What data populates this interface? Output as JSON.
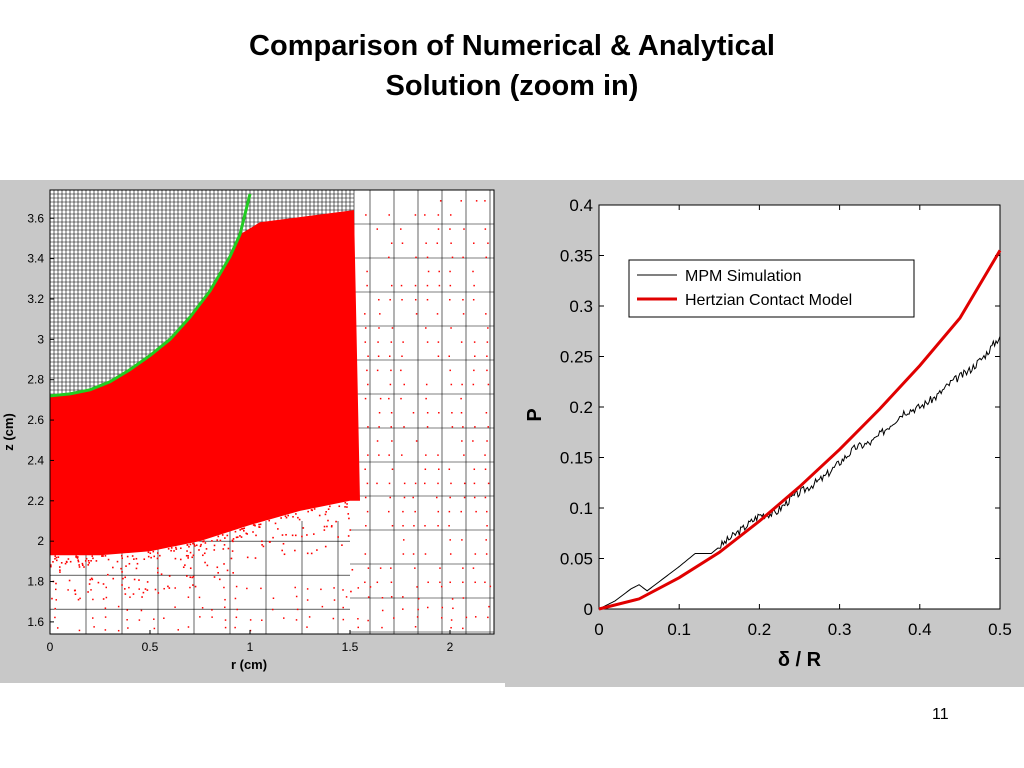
{
  "slide": {
    "title_line1": "Comparison of Numerical & Analytical",
    "title_line2": "Solution (zoom in)",
    "page_number": "11"
  },
  "colors": {
    "particles": "#ff0000",
    "analytical_boundary": "#22cc22",
    "mesh": "#000000",
    "panel_background": "#c8c8c8",
    "mpm_line": "#000000",
    "hertz_line": "#e00000"
  },
  "chart_data": [
    {
      "type": "scatter",
      "description_key": "mpm-particle-plot",
      "xlabel": "r (cm)",
      "ylabel": "z (cm)",
      "xlim": [
        0,
        2.22
      ],
      "ylim": [
        1.54,
        3.74
      ],
      "xticks": [
        "0",
        "0.5",
        "1",
        "1.5",
        "2"
      ],
      "yticks": [
        "1.6",
        "1.8",
        "2",
        "2.2",
        "2.4",
        "2.6",
        "2.8",
        "3",
        "3.2",
        "3.4",
        "3.6"
      ],
      "series": [
        {
          "role": "analytical_sphere_boundary",
          "x": [
            0,
            0.1,
            0.2,
            0.3,
            0.4,
            0.5,
            0.6,
            0.7,
            0.8,
            0.9,
            0.95,
            1.0
          ],
          "y": [
            2.72,
            2.73,
            2.75,
            2.79,
            2.85,
            2.92,
            3.0,
            3.11,
            3.24,
            3.41,
            3.52,
            3.72
          ]
        },
        {
          "role": "dense_particle_region_bottom",
          "x": [
            0,
            0.25,
            0.5,
            0.75,
            1.0,
            1.25,
            1.5
          ],
          "y": [
            1.93,
            1.93,
            1.95,
            2.0,
            2.08,
            2.15,
            2.2
          ]
        }
      ]
    },
    {
      "type": "line",
      "description_key": "force-displacement-plot",
      "xlabel": "δ / R",
      "ylabel": "P",
      "xlim": [
        0,
        0.5
      ],
      "ylim": [
        0,
        0.4
      ],
      "xticks": [
        "0",
        "0.1",
        "0.2",
        "0.3",
        "0.4",
        "0.5"
      ],
      "yticks": [
        "0",
        "0.05",
        "0.1",
        "0.15",
        "0.2",
        "0.25",
        "0.3",
        "0.35",
        "0.4"
      ],
      "legend_position": "top-left",
      "series": [
        {
          "name": "MPM Simulation",
          "x": [
            0,
            0.02,
            0.04,
            0.05,
            0.06,
            0.08,
            0.1,
            0.12,
            0.14,
            0.16,
            0.18,
            0.2,
            0.22,
            0.24,
            0.26,
            0.28,
            0.3,
            0.32,
            0.34,
            0.36,
            0.38,
            0.4,
            0.42,
            0.44,
            0.46,
            0.48,
            0.5
          ],
          "y": [
            0,
            0.008,
            0.02,
            0.024,
            0.018,
            0.03,
            0.042,
            0.055,
            0.055,
            0.068,
            0.08,
            0.093,
            0.095,
            0.11,
            0.12,
            0.13,
            0.145,
            0.16,
            0.165,
            0.18,
            0.195,
            0.2,
            0.21,
            0.225,
            0.235,
            0.25,
            0.27
          ]
        },
        {
          "name": "Hertzian Contact Model",
          "x": [
            0,
            0.05,
            0.1,
            0.15,
            0.2,
            0.25,
            0.3,
            0.35,
            0.4,
            0.45,
            0.5
          ],
          "y": [
            0,
            0.01,
            0.031,
            0.056,
            0.087,
            0.121,
            0.158,
            0.198,
            0.241,
            0.288,
            0.355
          ]
        }
      ]
    }
  ]
}
